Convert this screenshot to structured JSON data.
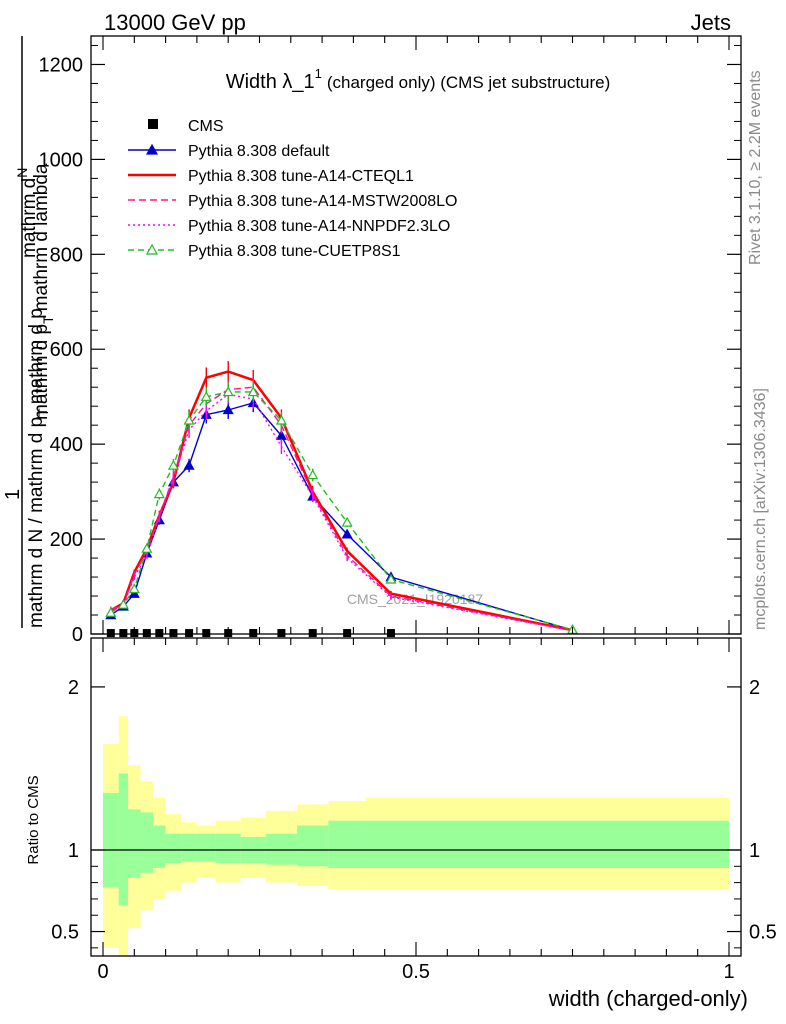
{
  "header": {
    "left": "13000 GeV pp",
    "right": "Jets"
  },
  "side_labels": {
    "rivet": "Rivet 3.1.10, ≥ 2.2M events",
    "mcplots": "mcplots.cern.ch [arXiv:1306.3436]"
  },
  "watermark": "CMS_2021_I1920187",
  "chart_data": [
    {
      "type": "line",
      "title_main": "Width λ_1",
      "title_sup": "1",
      "title_rest": "(charged only) (CMS jet substructure)",
      "ylabel_upper": "mathrm d",
      "ylabel_upper_n": "N",
      "ylabel_upper2": "mathrm d p",
      "ylabel_upper2_sub": "T",
      "ylabel_upper3": "mathrm d lambda",
      "ylabel_one": "1",
      "ylabel_lower": "mathrm d N / mathrm d p",
      "ylabel_lower_sub": "T",
      "ylabel_lower2": "mathrm d p",
      "xlim": [
        0,
        1
      ],
      "ylim": [
        0,
        1260
      ],
      "yticks": [
        0,
        200,
        400,
        600,
        800,
        1000,
        1200
      ],
      "ytick_labels": [
        "0",
        "200",
        "400",
        "600",
        "800",
        "1000",
        "1200"
      ],
      "x": [
        0.0125,
        0.0325,
        0.05,
        0.07,
        0.09,
        0.1125,
        0.1375,
        0.165,
        0.2,
        0.24,
        0.285,
        0.335,
        0.39,
        0.46,
        0.75
      ],
      "series": [
        {
          "name": "CMS",
          "color": "#000000",
          "style": "points",
          "values": [
            2,
            2,
            2,
            2,
            2,
            2,
            2,
            2,
            2,
            2,
            2,
            2,
            2,
            2,
            0
          ]
        },
        {
          "name": "Pythia 8.308 default",
          "color": "#0000cc",
          "style": "solid-triangle",
          "values": [
            40,
            58,
            85,
            170,
            240,
            320,
            355,
            462,
            472,
            487,
            418,
            290,
            210,
            120,
            8
          ]
        },
        {
          "name": "Pythia 8.308 tune-A14-CTEQL1",
          "color": "#ff0000",
          "style": "solid-thick",
          "values": [
            50,
            65,
            130,
            180,
            250,
            320,
            455,
            540,
            553,
            535,
            455,
            300,
            175,
            85,
            8
          ]
        },
        {
          "name": "Pythia 8.308 tune-A14-MSTW2008LO",
          "color": "#ff1493",
          "style": "dashed",
          "values": [
            52,
            62,
            125,
            175,
            250,
            330,
            440,
            485,
            515,
            520,
            440,
            295,
            165,
            80,
            7
          ]
        },
        {
          "name": "Pythia 8.308 tune-A14-NNPDF2.3LO",
          "color": "#ff00ff",
          "style": "dotted",
          "values": [
            48,
            60,
            120,
            165,
            245,
            325,
            430,
            470,
            505,
            495,
            395,
            290,
            160,
            78,
            7
          ]
        },
        {
          "name": "Pythia 8.308 tune-CUETP8S1",
          "color": "#22bb22",
          "style": "dashed-open-triangle",
          "values": [
            45,
            62,
            95,
            180,
            295,
            355,
            450,
            500,
            510,
            510,
            450,
            335,
            235,
            115,
            9
          ]
        }
      ]
    },
    {
      "type": "area",
      "ylabel": "Ratio to CMS",
      "xlabel": "width (charged-only)",
      "xlim": [
        0,
        1
      ],
      "ylim": [
        0.35,
        2.3
      ],
      "xticks": [
        0,
        0.5,
        1
      ],
      "xtick_labels": [
        "0",
        "0.5",
        "1"
      ],
      "yticks": [
        0.5,
        1,
        2
      ],
      "ytick_labels": [
        "0.5",
        "1",
        "2"
      ],
      "bin_edges": [
        0,
        0.025,
        0.04,
        0.06,
        0.08,
        0.1,
        0.125,
        0.15,
        0.18,
        0.22,
        0.26,
        0.31,
        0.36,
        0.42,
        1.0
      ],
      "yellow_band": {
        "color": "#ffff99",
        "low": [
          0.4,
          0.33,
          0.52,
          0.63,
          0.7,
          0.75,
          0.8,
          0.83,
          0.8,
          0.83,
          0.8,
          0.78,
          0.76,
          0.76
        ],
        "high": [
          1.65,
          1.82,
          1.52,
          1.42,
          1.32,
          1.22,
          1.17,
          1.15,
          1.18,
          1.2,
          1.24,
          1.28,
          1.3,
          1.32
        ]
      },
      "green_band": {
        "color": "#99ff99",
        "low": [
          0.77,
          0.66,
          0.83,
          0.86,
          0.89,
          0.92,
          0.93,
          0.93,
          0.92,
          0.92,
          0.91,
          0.9,
          0.89,
          0.89
        ],
        "high": [
          1.35,
          1.47,
          1.25,
          1.23,
          1.15,
          1.1,
          1.1,
          1.1,
          1.1,
          1.08,
          1.1,
          1.15,
          1.18,
          1.18
        ]
      },
      "reference_line": 1
    }
  ]
}
